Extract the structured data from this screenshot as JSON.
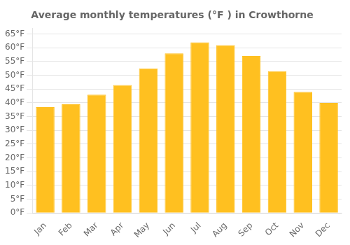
{
  "chart_data": {
    "type": "bar",
    "title": "Average monthly temperatures (°F ) in Crowthorne",
    "categories": [
      "Jan",
      "Feb",
      "Mar",
      "Apr",
      "May",
      "Jun",
      "Jul",
      "Aug",
      "Sep",
      "Oct",
      "Nov",
      "Dec"
    ],
    "values": [
      38.5,
      39.5,
      43.0,
      46.5,
      52.5,
      58.0,
      62.0,
      61.0,
      57.0,
      51.5,
      44.0,
      40.0
    ],
    "color": "#FFC020",
    "ylim": [
      0,
      67
    ],
    "yticks": [
      {
        "value": 0,
        "label": "0°F"
      },
      {
        "value": 5,
        "label": "5°F"
      },
      {
        "value": 10,
        "label": "10°F"
      },
      {
        "value": 15,
        "label": "15°F"
      },
      {
        "value": 20,
        "label": "20°F"
      },
      {
        "value": 25,
        "label": "25°F"
      },
      {
        "value": 30,
        "label": "30°F"
      },
      {
        "value": 35,
        "label": "35°F"
      },
      {
        "value": 40,
        "label": "40°F"
      },
      {
        "value": 45,
        "label": "45°F"
      },
      {
        "value": 50,
        "label": "50°F"
      },
      {
        "value": 55,
        "label": "55°F"
      },
      {
        "value": 60,
        "label": "60°F"
      },
      {
        "value": 65,
        "label": "65°F"
      }
    ],
    "grid": true
  }
}
